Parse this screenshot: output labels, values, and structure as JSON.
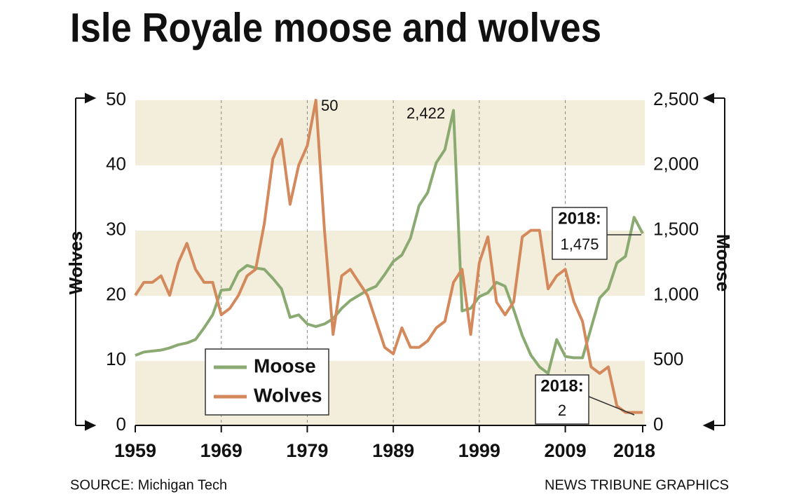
{
  "chart_data": {
    "type": "line",
    "title": "Isle Royale moose and wolves",
    "y_label": "Wolves",
    "y2_label": "Moose",
    "source": "SOURCE: Michigan Tech",
    "credit": "NEWS TRIBUNE GRAPHICS",
    "x": [
      1959,
      1960,
      1961,
      1962,
      1963,
      1964,
      1965,
      1966,
      1967,
      1968,
      1969,
      1970,
      1971,
      1972,
      1973,
      1974,
      1975,
      1976,
      1977,
      1978,
      1979,
      1980,
      1981,
      1982,
      1983,
      1984,
      1985,
      1986,
      1987,
      1988,
      1989,
      1990,
      1991,
      1992,
      1993,
      1994,
      1995,
      1996,
      1997,
      1998,
      1999,
      2000,
      2001,
      2002,
      2003,
      2004,
      2005,
      2006,
      2007,
      2008,
      2009,
      2010,
      2011,
      2012,
      2013,
      2014,
      2015,
      2016,
      2017,
      2018
    ],
    "series": [
      {
        "name": "Moose",
        "color": "#8aaa72",
        "axis": "y2",
        "values": [
          538,
          564,
          572,
          579,
          596,
          620,
          634,
          660,
          750,
          850,
          1040,
          1045,
          1180,
          1230,
          1210,
          1200,
          1130,
          1050,
          830,
          850,
          780,
          760,
          780,
          820,
          900,
          960,
          1000,
          1040,
          1070,
          1160,
          1260,
          1310,
          1440,
          1690,
          1790,
          2020,
          2120,
          2422,
          880,
          900,
          990,
          1020,
          1100,
          1070,
          890,
          690,
          540,
          450,
          400,
          660,
          530,
          520,
          520,
          750,
          980,
          1050,
          1250,
          1300,
          1600,
          1475
        ]
      },
      {
        "name": "Wolves",
        "color": "#d4895c",
        "values": [
          20,
          22,
          22,
          23,
          20,
          25,
          28,
          24,
          22,
          22,
          17,
          18,
          20,
          23,
          24,
          31,
          41,
          44,
          34,
          40,
          43,
          50,
          30,
          14,
          23,
          24,
          22,
          20,
          16,
          12,
          11,
          15,
          12,
          12,
          13,
          15,
          16,
          22,
          24,
          14,
          25,
          29,
          19,
          17,
          19,
          29,
          30,
          30,
          21,
          23,
          24,
          19,
          16,
          9,
          8,
          9,
          3,
          2,
          2,
          2
        ]
      }
    ],
    "xlim": [
      1959,
      2018
    ],
    "xticks": [
      1959,
      1969,
      1979,
      1989,
      1999,
      2009,
      2018
    ],
    "ylim": [
      0,
      50
    ],
    "yticks": [
      0,
      10,
      20,
      30,
      40,
      50
    ],
    "y2lim": [
      0,
      2500
    ],
    "y2ticks": [
      0,
      500,
      {
        "value": 1000,
        "label": "1,000"
      },
      {
        "value": 1500,
        "label": "1,500"
      },
      {
        "value": 2000,
        "label": "2,000"
      },
      {
        "value": 2500,
        "label": "2,500"
      }
    ],
    "annotations": [
      "50",
      "2,422",
      "2018:",
      "1,475",
      "2018:",
      "2"
    ],
    "legend": "lower left"
  }
}
